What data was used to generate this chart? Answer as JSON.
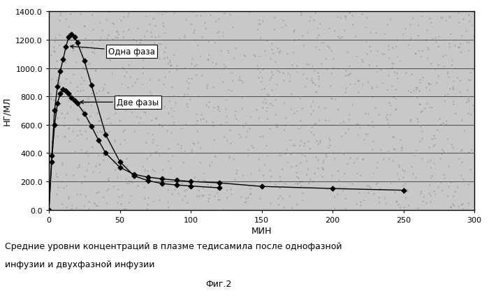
{
  "xlabel": "МИН",
  "ylabel": "НГ/МЛ",
  "xlim": [
    0,
    300
  ],
  "ylim": [
    0,
    1400
  ],
  "xticks": [
    0,
    50,
    100,
    150,
    200,
    250,
    300
  ],
  "yticks": [
    0.0,
    200.0,
    400.0,
    600.0,
    800.0,
    1000.0,
    1200.0,
    1400.0
  ],
  "one_phase_x": [
    0,
    2,
    4,
    6,
    8,
    10,
    12,
    14,
    16,
    18,
    20,
    25,
    30,
    40,
    50,
    60,
    70,
    80,
    90,
    100,
    120
  ],
  "one_phase_y": [
    0,
    380,
    700,
    870,
    980,
    1060,
    1150,
    1220,
    1240,
    1220,
    1180,
    1050,
    880,
    530,
    340,
    240,
    205,
    185,
    175,
    168,
    155
  ],
  "two_phase_x": [
    0,
    2,
    4,
    6,
    8,
    10,
    12,
    14,
    16,
    18,
    20,
    25,
    30,
    35,
    40,
    50,
    60,
    70,
    80,
    90,
    100,
    120,
    150,
    200,
    250
  ],
  "two_phase_y": [
    0,
    340,
    600,
    750,
    820,
    850,
    840,
    820,
    790,
    770,
    750,
    680,
    590,
    490,
    400,
    300,
    250,
    230,
    218,
    208,
    200,
    190,
    165,
    150,
    138
  ],
  "annotation1": "Одна фаза",
  "annotation2": "Две фазы",
  "caption_line1": "Средние уровни концентраций в плазме тедисамила после однофазной",
  "caption_line2": "инфузии и двухфазной инфузии",
  "fig_label": "Фиг.2",
  "plot_bg": "#c8c8c8",
  "fig_bg": "#ffffff",
  "line_color": "#000000",
  "marker": "D",
  "marker_size": 3.5,
  "linewidth": 1.0
}
